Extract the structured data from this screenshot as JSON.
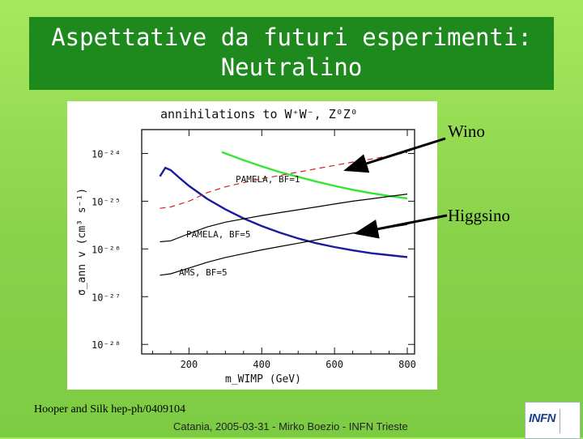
{
  "slide": {
    "title_line1": "Aspettative da futuri esperimenti:",
    "title_line2": "Neutralino",
    "citation": "Hooper and Silk hep-ph/0409104",
    "footer": "Catania, 2005-03-31 - Mirko Boezio - INFN Trieste",
    "annotations": {
      "wino": "Wino",
      "higgsino": "Higgsino"
    },
    "logo": {
      "text": "INFN"
    }
  },
  "chart_data": {
    "type": "line",
    "title": "annihilations to W⁺W⁻, Z⁰Z⁰",
    "xlabel": "m_WIMP (GeV)",
    "ylabel": "σ_ann v (cm³ s⁻¹)",
    "xlim": [
      70,
      820
    ],
    "ylim_log10": [
      -28.2,
      -23.5
    ],
    "xticks": [
      200,
      400,
      600,
      800
    ],
    "xtick_labels": [
      "200",
      "400",
      "600",
      "800"
    ],
    "yticks_log10": [
      -24,
      -25,
      -26,
      -27,
      -28
    ],
    "ytick_labels": [
      "10⁻²⁴",
      "10⁻²⁵",
      "10⁻²⁶",
      "10⁻²⁷",
      "10⁻²⁸"
    ],
    "grid": false,
    "series": [
      {
        "name": "Wino",
        "color": "#33e633",
        "style": "solid",
        "x": [
          290,
          350,
          400,
          450,
          500,
          550,
          600,
          650,
          700,
          750,
          800
        ],
        "log10_y": [
          -23.97,
          -24.14,
          -24.27,
          -24.39,
          -24.49,
          -24.59,
          -24.68,
          -24.76,
          -24.83,
          -24.89,
          -24.94
        ]
      },
      {
        "name": "Higgsino",
        "color": "#1a1aa0",
        "style": "solid",
        "x": [
          120,
          135,
          150,
          175,
          200,
          250,
          300,
          350,
          400,
          450,
          500,
          550,
          600,
          650,
          700,
          750,
          800
        ],
        "log10_y": [
          -24.48,
          -24.3,
          -24.35,
          -24.52,
          -24.68,
          -24.95,
          -25.17,
          -25.36,
          -25.52,
          -25.66,
          -25.78,
          -25.88,
          -25.96,
          -26.03,
          -26.09,
          -26.13,
          -26.17
        ]
      },
      {
        "name": "PAMELA, BF=1",
        "color": "#cc2020",
        "style": "dashed",
        "x": [
          120,
          150,
          200,
          250,
          300,
          350,
          400,
          450,
          500,
          550,
          600,
          650,
          700,
          750,
          800
        ],
        "log10_y": [
          -25.15,
          -25.12,
          -25.0,
          -24.82,
          -24.7,
          -24.61,
          -24.53,
          -24.46,
          -24.39,
          -24.32,
          -24.25,
          -24.18,
          -24.12,
          -24.05,
          -23.98
        ]
      },
      {
        "name": "PAMELA, BF=5",
        "color": "#000000",
        "style": "solid",
        "x": [
          120,
          150,
          200,
          250,
          300,
          350,
          400,
          450,
          500,
          550,
          600,
          650,
          700,
          750,
          800
        ],
        "log10_y": [
          -25.85,
          -25.83,
          -25.68,
          -25.54,
          -25.44,
          -25.37,
          -25.3,
          -25.24,
          -25.18,
          -25.12,
          -25.06,
          -25.0,
          -24.95,
          -24.9,
          -24.85
        ]
      },
      {
        "name": "AMS, BF=5",
        "color": "#000000",
        "style": "solid",
        "x": [
          120,
          150,
          200,
          250,
          300,
          350,
          400,
          450,
          500,
          550,
          600,
          650,
          700,
          750,
          800
        ],
        "log10_y": [
          -26.55,
          -26.52,
          -26.4,
          -26.28,
          -26.18,
          -26.1,
          -26.02,
          -25.95,
          -25.88,
          -25.81,
          -25.74,
          -25.67,
          -25.61,
          -25.55,
          -25.49
        ]
      }
    ],
    "curve_labels": [
      {
        "text": "PAMELA, BF=1",
        "series": "PAMELA, BF=1"
      },
      {
        "text": "PAMELA, BF=5",
        "series": "PAMELA, BF=5"
      },
      {
        "text": "AMS, BF=5",
        "series": "AMS, BF=5"
      }
    ]
  }
}
